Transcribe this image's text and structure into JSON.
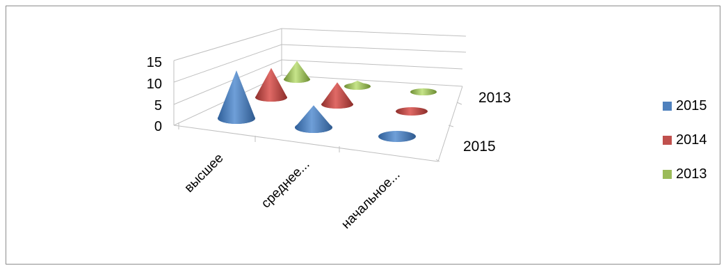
{
  "chart_data": {
    "type": "3d-cone",
    "categories": [
      "высшее",
      "среднее...",
      "начальное..."
    ],
    "series": [
      {
        "name": "2015",
        "values": [
          13,
          6,
          0
        ],
        "color": "#4f81bd"
      },
      {
        "name": "2014",
        "values": [
          8,
          6,
          0
        ],
        "color": "#c0504d"
      },
      {
        "name": "2013",
        "values": [
          5,
          1.5,
          1
        ],
        "color": "#9bbb59"
      }
    ],
    "depth_axis_labels": [
      "2015",
      "2013"
    ],
    "y_ticks": [
      "0",
      "5",
      "10",
      "15"
    ],
    "ylim": [
      0,
      15
    ],
    "grid": true,
    "legend_position": "right"
  }
}
